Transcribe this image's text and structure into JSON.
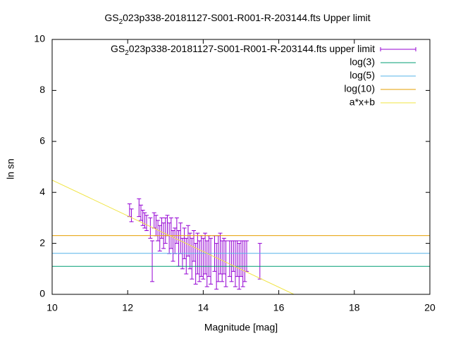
{
  "chart_data": {
    "type": "errorbar",
    "title": [
      "GS",
      "2",
      "023p338-20181127-S001-R001-R-203144.fts Upper limit"
    ],
    "x_label": "Magnitude [mag]",
    "y_label": "ln sn",
    "xlim": [
      10,
      20
    ],
    "xticks": [
      10,
      12,
      14,
      16,
      18,
      20
    ],
    "ylim": [
      0,
      10
    ],
    "yticks": [
      0,
      2,
      4,
      6,
      8,
      10
    ],
    "legend": "top-right",
    "series": [
      {
        "name": [
          "GS",
          "2",
          "023p338-20181127-S001-R001-R-203144.fts upper limit"
        ],
        "color": "#9400d3",
        "x": [
          12.05,
          12.1,
          12.3,
          12.35,
          12.4,
          12.45,
          12.5,
          12.6,
          12.65,
          12.7,
          12.75,
          12.8,
          12.85,
          12.9,
          12.95,
          13.0,
          13.05,
          13.1,
          13.15,
          13.2,
          13.25,
          13.3,
          13.35,
          13.4,
          13.45,
          13.5,
          13.55,
          13.6,
          13.65,
          13.7,
          13.75,
          13.8,
          13.85,
          13.9,
          13.95,
          14.0,
          14.05,
          14.1,
          14.15,
          14.2,
          14.3,
          14.35,
          14.4,
          14.45,
          14.5,
          14.55,
          14.6,
          14.7,
          14.75,
          14.8,
          14.85,
          14.9,
          14.95,
          15.0,
          15.05,
          15.1,
          15.15,
          15.5
        ],
        "values": [
          3.3,
          3.1,
          3.4,
          3.2,
          3.0,
          2.9,
          2.8,
          2.6,
          1.3,
          2.9,
          2.7,
          2.5,
          2.2,
          2.6,
          2.3,
          2.5,
          2.7,
          2.2,
          2.4,
          1.9,
          2.1,
          2.5,
          1.8,
          2.2,
          1.6,
          2.0,
          1.5,
          2.1,
          1.7,
          1.4,
          1.9,
          1.2,
          1.6,
          1.3,
          1.5,
          1.4,
          1.6,
          1.2,
          1.5,
          1.3,
          1.6,
          1.1,
          1.4,
          1.6,
          1.3,
          1.5,
          1.2,
          1.4,
          1.3,
          1.5,
          1.2,
          1.4,
          1.1,
          1.4,
          1.2,
          1.3,
          1.5,
          1.3
        ],
        "errors": [
          0.25,
          0.25,
          0.35,
          0.3,
          0.3,
          0.3,
          0.3,
          0.4,
          0.8,
          0.3,
          0.4,
          0.4,
          0.5,
          0.4,
          0.5,
          0.5,
          0.4,
          0.6,
          0.6,
          0.6,
          0.5,
          0.5,
          0.7,
          0.6,
          0.6,
          0.6,
          0.7,
          0.6,
          0.7,
          0.8,
          0.6,
          0.8,
          0.8,
          0.8,
          0.8,
          0.8,
          0.8,
          0.9,
          0.8,
          0.9,
          0.7,
          0.9,
          0.9,
          0.8,
          0.8,
          0.7,
          0.9,
          0.7,
          0.8,
          0.6,
          0.9,
          0.7,
          0.9,
          0.7,
          0.9,
          0.8,
          0.6,
          0.7
        ]
      },
      {
        "name": "log(3)",
        "color": "#009e73",
        "x": [
          10,
          20
        ],
        "values": [
          1.0986,
          1.0986
        ]
      },
      {
        "name": "log(5)",
        "color": "#56b4e9",
        "x": [
          10,
          20
        ],
        "values": [
          1.6094,
          1.6094
        ]
      },
      {
        "name": "log(10)",
        "color": "#e69f00",
        "x": [
          10,
          20
        ],
        "values": [
          2.3026,
          2.3026
        ]
      },
      {
        "name": "a*x+b",
        "color": "#f0e442",
        "x": [
          10,
          16.4
        ],
        "values": [
          4.48,
          0
        ]
      }
    ]
  }
}
